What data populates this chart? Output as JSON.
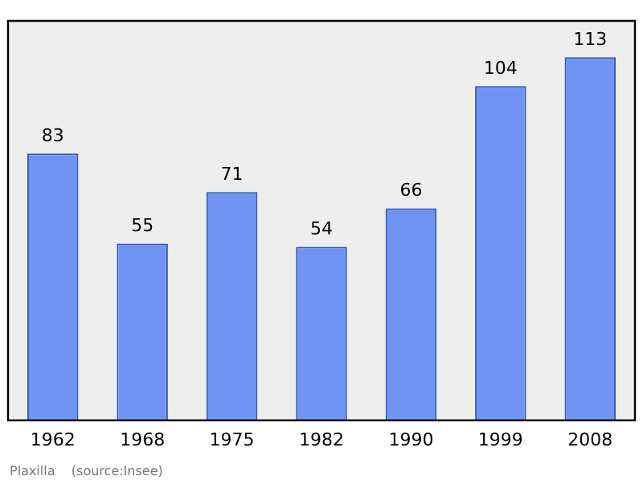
{
  "chart_data": {
    "type": "bar",
    "categories": [
      "1962",
      "1968",
      "1975",
      "1982",
      "1990",
      "1999",
      "2008"
    ],
    "values": [
      83,
      55,
      71,
      54,
      66,
      104,
      113
    ],
    "color": "#7094f4",
    "data_labels": true,
    "legend": false,
    "tick_labels": "x",
    "annotations": [
      "Plaxilla    (source:Insee)"
    ]
  }
}
